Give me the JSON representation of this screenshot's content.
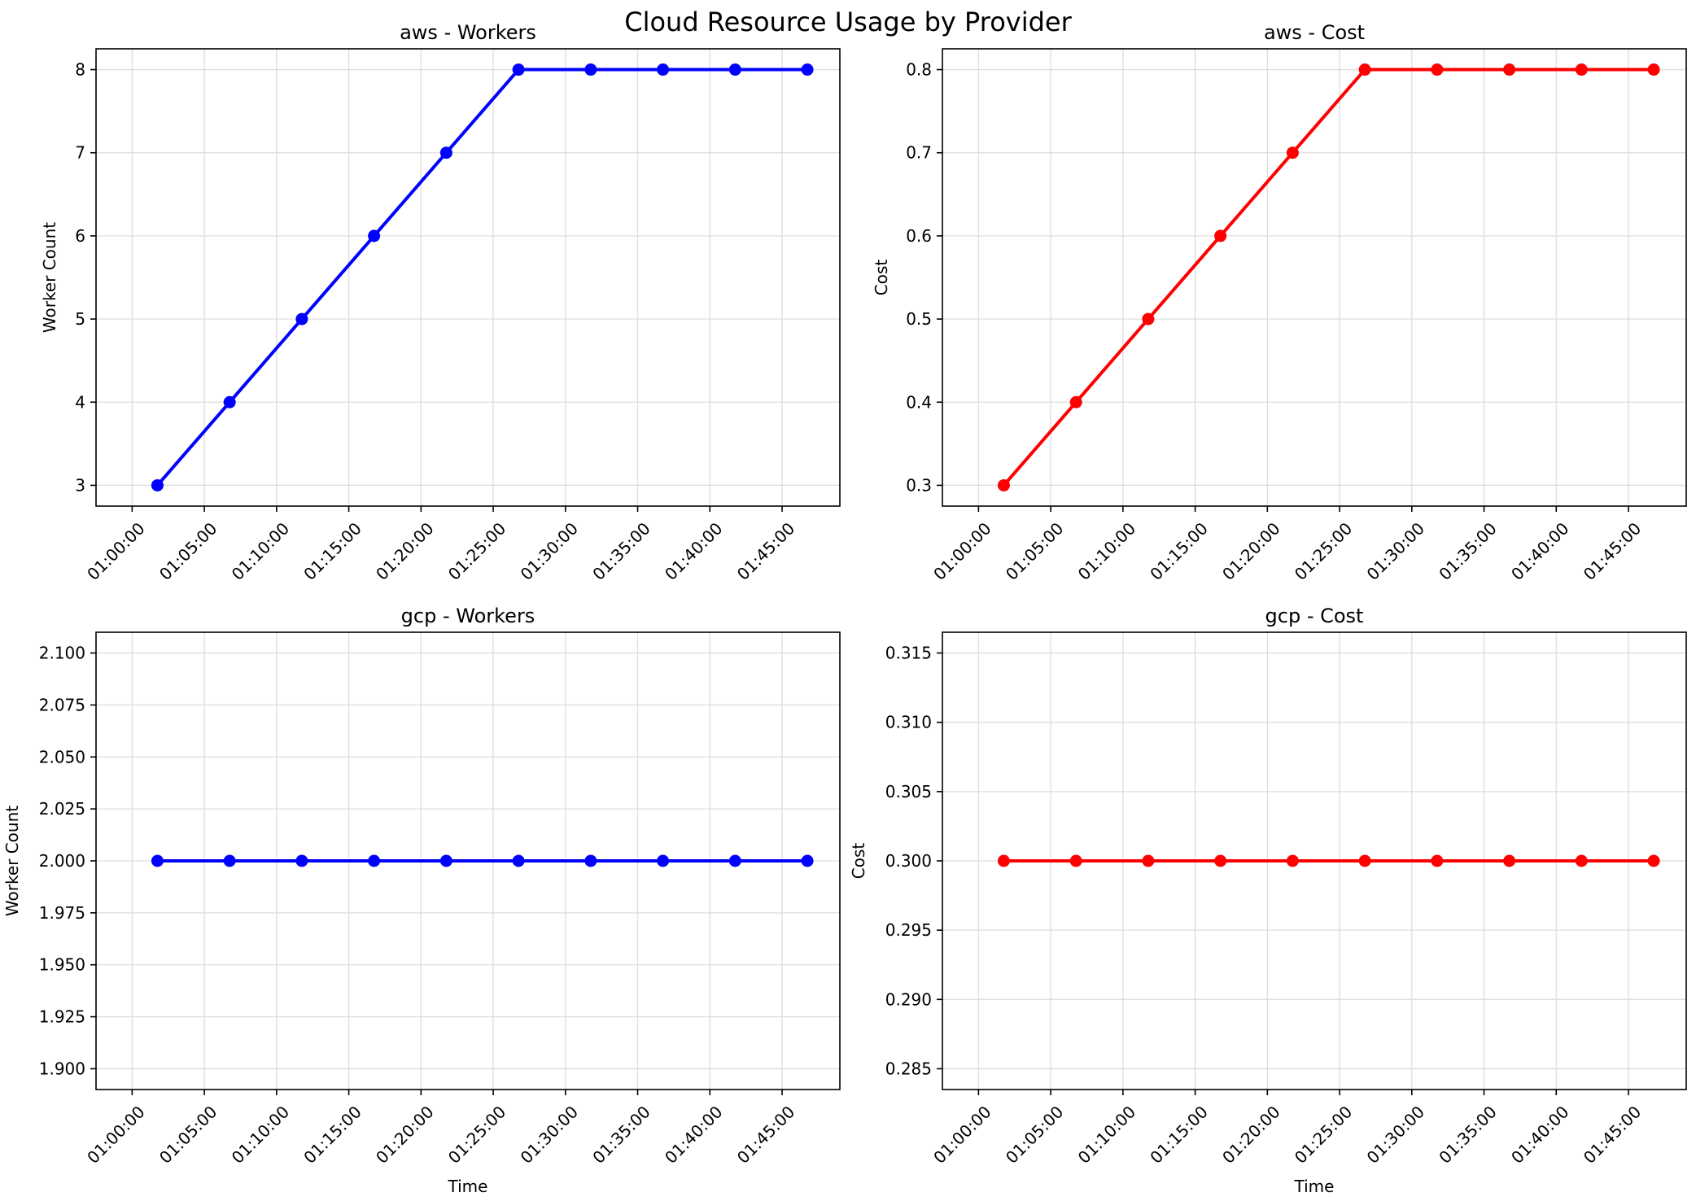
{
  "figure": {
    "title": "Cloud Resource Usage by Provider"
  },
  "chart_data": [
    {
      "type": "line",
      "title": "aws - Workers",
      "xlabel": "",
      "ylabel": "Worker Count",
      "x": [
        "01:01:45",
        "01:06:45",
        "01:11:45",
        "01:16:45",
        "01:21:45",
        "01:26:45",
        "01:31:45",
        "01:36:45",
        "01:41:45",
        "01:46:45"
      ],
      "series": [
        {
          "values": [
            3,
            4,
            5,
            6,
            7,
            8,
            8,
            8,
            8,
            8
          ],
          "color": "#0000ff"
        }
      ],
      "xticks": [
        "01:00:00",
        "01:05:00",
        "01:10:00",
        "01:15:00",
        "01:20:00",
        "01:25:00",
        "01:30:00",
        "01:35:00",
        "01:40:00",
        "01:45:00"
      ],
      "yticks": [
        "3",
        "4",
        "5",
        "6",
        "7",
        "8"
      ],
      "ylim": [
        2.75,
        8.25
      ],
      "grid": true
    },
    {
      "type": "line",
      "title": "aws - Cost",
      "xlabel": "",
      "ylabel": "Cost",
      "x": [
        "01:01:45",
        "01:06:45",
        "01:11:45",
        "01:16:45",
        "01:21:45",
        "01:26:45",
        "01:31:45",
        "01:36:45",
        "01:41:45",
        "01:46:45"
      ],
      "series": [
        {
          "values": [
            0.3,
            0.4,
            0.5,
            0.6,
            0.7,
            0.8,
            0.8,
            0.8,
            0.8,
            0.8
          ],
          "color": "#ff0000"
        }
      ],
      "xticks": [
        "01:00:00",
        "01:05:00",
        "01:10:00",
        "01:15:00",
        "01:20:00",
        "01:25:00",
        "01:30:00",
        "01:35:00",
        "01:40:00",
        "01:45:00"
      ],
      "yticks": [
        "0.3",
        "0.4",
        "0.5",
        "0.6",
        "0.7",
        "0.8"
      ],
      "ylim": [
        0.275,
        0.825
      ],
      "grid": true
    },
    {
      "type": "line",
      "title": "gcp - Workers",
      "xlabel": "Time",
      "ylabel": "Worker Count",
      "x": [
        "01:01:45",
        "01:06:45",
        "01:11:45",
        "01:16:45",
        "01:21:45",
        "01:26:45",
        "01:31:45",
        "01:36:45",
        "01:41:45",
        "01:46:45"
      ],
      "series": [
        {
          "values": [
            2,
            2,
            2,
            2,
            2,
            2,
            2,
            2,
            2,
            2
          ],
          "color": "#0000ff"
        }
      ],
      "xticks": [
        "01:00:00",
        "01:05:00",
        "01:10:00",
        "01:15:00",
        "01:20:00",
        "01:25:00",
        "01:30:00",
        "01:35:00",
        "01:40:00",
        "01:45:00"
      ],
      "yticks": [
        "1.900",
        "1.925",
        "1.950",
        "1.975",
        "2.000",
        "2.025",
        "2.050",
        "2.075",
        "2.100"
      ],
      "ylim": [
        1.89,
        2.11
      ],
      "grid": true
    },
    {
      "type": "line",
      "title": "gcp - Cost",
      "xlabel": "Time",
      "ylabel": "Cost",
      "x": [
        "01:01:45",
        "01:06:45",
        "01:11:45",
        "01:16:45",
        "01:21:45",
        "01:26:45",
        "01:31:45",
        "01:36:45",
        "01:41:45",
        "01:46:45"
      ],
      "series": [
        {
          "values": [
            0.3,
            0.3,
            0.3,
            0.3,
            0.3,
            0.3,
            0.3,
            0.3,
            0.3,
            0.3
          ],
          "color": "#ff0000"
        }
      ],
      "xticks": [
        "01:00:00",
        "01:05:00",
        "01:10:00",
        "01:15:00",
        "01:20:00",
        "01:25:00",
        "01:30:00",
        "01:35:00",
        "01:40:00",
        "01:45:00"
      ],
      "yticks": [
        "0.285",
        "0.290",
        "0.295",
        "0.300",
        "0.305",
        "0.310",
        "0.315"
      ],
      "ylim": [
        0.2835,
        0.3165
      ],
      "grid": true
    }
  ]
}
